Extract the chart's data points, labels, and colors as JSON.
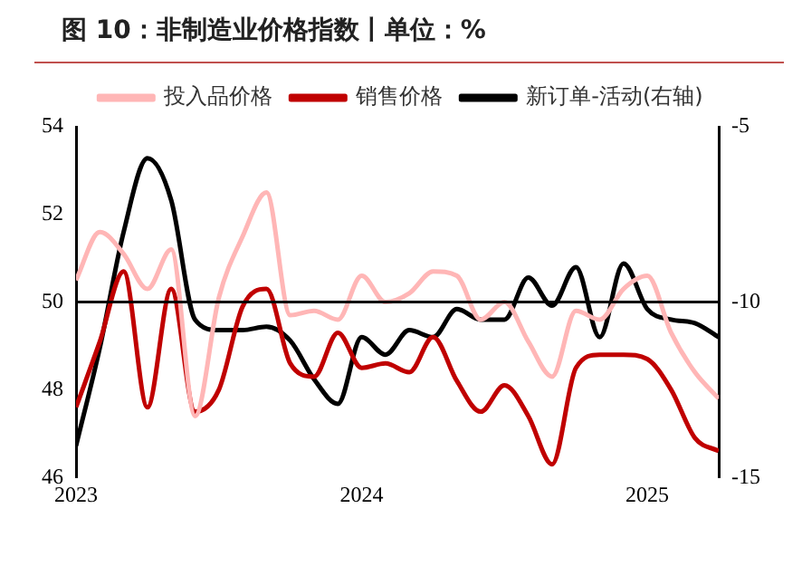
{
  "chart_data": {
    "type": "line",
    "title": "图 10：非制造业价格指数丨单位：%",
    "legend": "top",
    "x": [
      "2023-01",
      "2023-02",
      "2023-03",
      "2023-04",
      "2023-05",
      "2023-06",
      "2023-07",
      "2023-08",
      "2023-09",
      "2023-10",
      "2023-11",
      "2023-12",
      "2024-01",
      "2024-02",
      "2024-03",
      "2024-04",
      "2024-05",
      "2024-06",
      "2024-07",
      "2024-08",
      "2024-09",
      "2024-10",
      "2024-11",
      "2024-12",
      "2025-01",
      "2025-02",
      "2025-03",
      "2025-04"
    ],
    "xlim": [
      "2023-01",
      "2025-04"
    ],
    "xticks": [
      {
        "value": "2023-01",
        "label": "2023"
      },
      {
        "value": "2024-01",
        "label": "2024"
      },
      {
        "value": "2025-01",
        "label": "2025"
      }
    ],
    "ylim": [
      46,
      54
    ],
    "yticks": [
      46,
      48,
      50,
      52,
      54
    ],
    "y2lim": [
      -15,
      -5
    ],
    "y2ticks": [
      -15,
      -10,
      -5
    ],
    "ref_lines": [
      {
        "axis": "y",
        "value": 50,
        "color": "#000000"
      }
    ],
    "series": [
      {
        "name": "投入品价格",
        "color": "#ffb6b6",
        "values": [
          50.5,
          51.6,
          51.1,
          50.3,
          51.2,
          47.4,
          50.1,
          51.5,
          52.5,
          49.7,
          49.8,
          49.6,
          50.6,
          50.0,
          50.2,
          50.7,
          50.6,
          49.6,
          50.0,
          49.1,
          48.3,
          49.8,
          49.6,
          50.3,
          50.6,
          49.3,
          48.4,
          47.8
        ]
      },
      {
        "name": "销售价格",
        "color": "#c00000",
        "values": [
          47.6,
          49.1,
          50.7,
          47.6,
          50.3,
          47.5,
          48.0,
          49.9,
          50.3,
          48.6,
          48.3,
          49.3,
          48.5,
          48.6,
          48.4,
          49.2,
          48.2,
          47.5,
          48.1,
          47.4,
          46.3,
          48.5,
          48.8,
          48.8,
          48.7,
          48.0,
          46.9,
          46.6
        ]
      },
      {
        "name": "新订单-活动(右轴)",
        "color": "#000000",
        "axis": "y2",
        "values": [
          -14.1,
          -11.3,
          -8.0,
          -5.9,
          -7.1,
          -10.5,
          -10.8,
          -10.8,
          -10.7,
          -11.1,
          -12.2,
          -12.9,
          -11.0,
          -11.5,
          -10.8,
          -11.0,
          -10.2,
          -10.5,
          -10.5,
          -9.3,
          -10.1,
          -9.0,
          -11.0,
          -8.9,
          -10.2,
          -10.5,
          -10.6,
          -11.0
        ]
      }
    ]
  }
}
